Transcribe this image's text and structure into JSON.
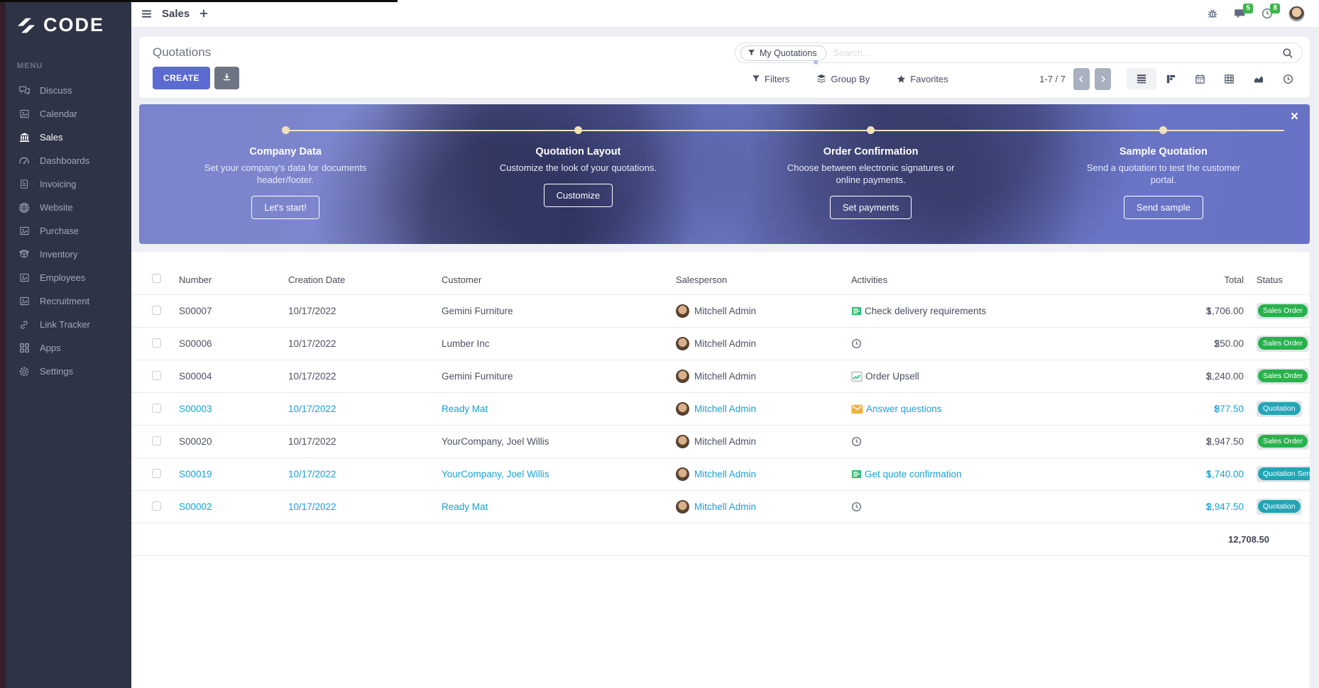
{
  "colors": {
    "primary": "#5c6bd2",
    "sidebar_bg": "#2e3346",
    "success_badge": "#28b24c",
    "info_badge": "#24a5b5",
    "highlight_text": "#1aa1d4",
    "notification_badge": "#3bb54a",
    "banner_accent": "#f2e0bd"
  },
  "topbar": {
    "app_title": "Sales",
    "plus_label": "+",
    "message_badge": "5",
    "activity_badge": "8"
  },
  "sidebar": {
    "logo_text": "CODE",
    "menu_label": "MENU",
    "items": [
      {
        "label": "Discuss",
        "icon": "discuss-icon",
        "active": false
      },
      {
        "label": "Calendar",
        "icon": "image-icon",
        "active": false
      },
      {
        "label": "Sales",
        "icon": "sales-icon",
        "active": true
      },
      {
        "label": "Dashboards",
        "icon": "gauge-icon",
        "active": false
      },
      {
        "label": "Invoicing",
        "icon": "invoice-icon",
        "active": false
      },
      {
        "label": "Website",
        "icon": "globe-icon",
        "active": false
      },
      {
        "label": "Purchase",
        "icon": "image-icon",
        "active": false
      },
      {
        "label": "Inventory",
        "icon": "box-icon",
        "active": false
      },
      {
        "label": "Employees",
        "icon": "image-icon",
        "active": false
      },
      {
        "label": "Recruitment",
        "icon": "image-icon",
        "active": false
      },
      {
        "label": "Link Tracker",
        "icon": "link-icon",
        "active": false
      },
      {
        "label": "Apps",
        "icon": "grid-icon",
        "active": false
      },
      {
        "label": "Settings",
        "icon": "gear-icon",
        "active": false
      }
    ]
  },
  "controls": {
    "page_title": "Quotations",
    "create_label": "CREATE",
    "search": {
      "active_filter": "My Quotations",
      "remove_filter": "×",
      "placeholder": "Search..."
    },
    "filters_label": "Filters",
    "group_by_label": "Group By",
    "favorites_label": "Favorites",
    "pager_text": "1-7 / 7"
  },
  "banner": {
    "close_label": "×",
    "steps": [
      {
        "title": "Company Data",
        "description": "Set your company's data for documents header/footer.",
        "button": "Let's start!"
      },
      {
        "title": "Quotation Layout",
        "description": "Customize the look of your quotations.",
        "button": "Customize"
      },
      {
        "title": "Order Confirmation",
        "description": "Choose between electronic signatures or online payments.",
        "button": "Set payments"
      },
      {
        "title": "Sample Quotation",
        "description": "Send a quotation to test the customer portal.",
        "button": "Send sample"
      }
    ]
  },
  "table": {
    "columns": [
      "Number",
      "Creation Date",
      "Customer",
      "Salesperson",
      "Activities",
      "Total",
      "Status"
    ],
    "rows": [
      {
        "number": "S00007",
        "creation_date": "10/17/2022",
        "customer": "Gemini Furniture",
        "salesperson": "Mitchell Admin",
        "activity_icon": "list-check-icon",
        "activity_label": "Check delivery requirements",
        "currency": "$",
        "total": "1,706.00",
        "status": "Sales Order",
        "status_variant": "success",
        "highlighted": false
      },
      {
        "number": "S00006",
        "creation_date": "10/17/2022",
        "customer": "Lumber Inc",
        "salesperson": "Mitchell Admin",
        "activity_icon": "clock-icon",
        "activity_label": "",
        "currency": "$",
        "total": "250.00",
        "status": "Sales Order",
        "status_variant": "success",
        "highlighted": false
      },
      {
        "number": "S00004",
        "creation_date": "10/17/2022",
        "customer": "Gemini Furniture",
        "salesperson": "Mitchell Admin",
        "activity_icon": "chart-upsell-icon",
        "activity_label": "Order Upsell",
        "currency": "$",
        "total": "2,240.00",
        "status": "Sales Order",
        "status_variant": "success",
        "highlighted": false
      },
      {
        "number": "S00003",
        "creation_date": "10/17/2022",
        "customer": "Ready Mat",
        "salesperson": "Mitchell Admin",
        "activity_icon": "envelope-icon",
        "activity_label": "Answer questions",
        "currency": "$",
        "total": "877.50",
        "status": "Quotation",
        "status_variant": "info",
        "highlighted": true
      },
      {
        "number": "S00020",
        "creation_date": "10/17/2022",
        "customer": "YourCompany, Joel Willis",
        "salesperson": "Mitchell Admin",
        "activity_icon": "clock-icon",
        "activity_label": "",
        "currency": "$",
        "total": "2,947.50",
        "status": "Sales Order",
        "status_variant": "success",
        "highlighted": false
      },
      {
        "number": "S00019",
        "creation_date": "10/17/2022",
        "customer": "YourCompany, Joel Willis",
        "salesperson": "Mitchell Admin",
        "activity_icon": "list-check-icon",
        "activity_label": "Get quote confirmation",
        "currency": "$",
        "total": "1,740.00",
        "status": "Quotation Sent",
        "status_variant": "info",
        "highlighted": true
      },
      {
        "number": "S00002",
        "creation_date": "10/17/2022",
        "customer": "Ready Mat",
        "salesperson": "Mitchell Admin",
        "activity_icon": "clock-icon",
        "activity_label": "",
        "currency": "$",
        "total": "2,947.50",
        "status": "Quotation",
        "status_variant": "info",
        "highlighted": true
      }
    ],
    "footer_total": "12,708.50"
  }
}
